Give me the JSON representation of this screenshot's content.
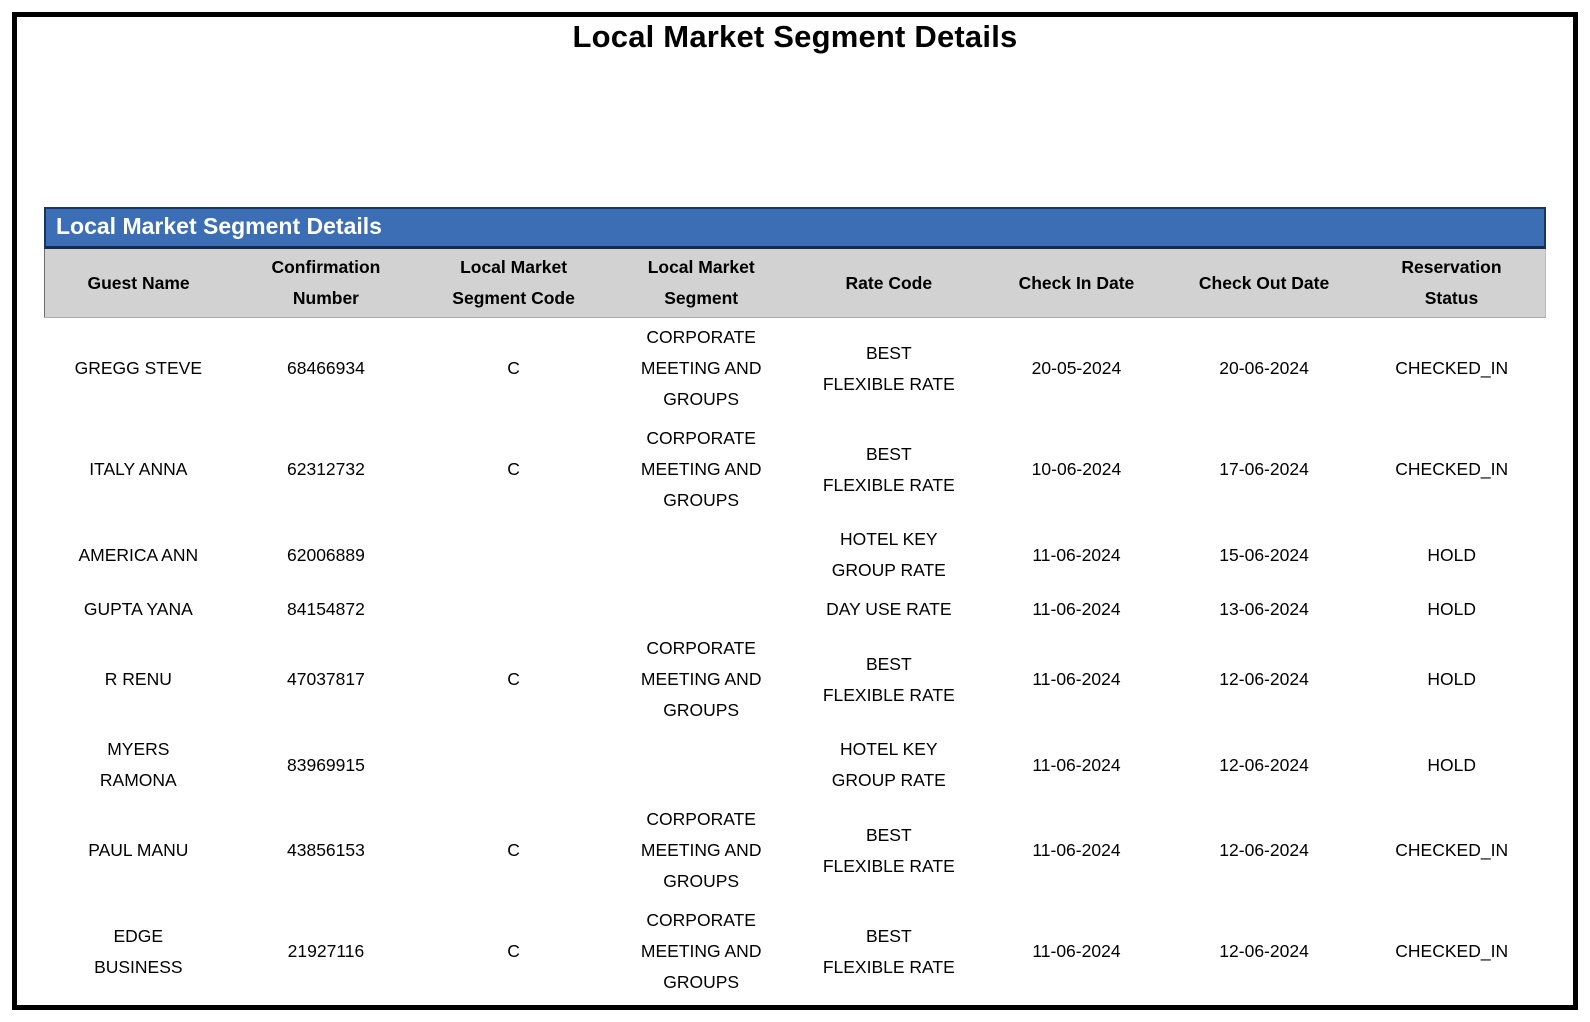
{
  "page_title": "Local Market Segment Details",
  "colors": {
    "band_background": "#3B6EB5",
    "band_text": "#FFFFFF",
    "column_header_background": "#D2D2D2",
    "page_border": "#000000"
  },
  "table": {
    "band_title": "Local Market Segment Details",
    "column_keys": [
      "guest_name",
      "confirmation_number",
      "local_market_segment_code",
      "local_market_segment",
      "rate_code",
      "check_in_date",
      "check_out_date",
      "reservation_status"
    ],
    "columns": [
      "Guest Name",
      "Confirmation\nNumber",
      "Local Market\nSegment Code",
      "Local Market\nSegment",
      "Rate Code",
      "Check In Date",
      "Check Out Date",
      "Reservation\nStatus"
    ],
    "rows": [
      [
        "GREGG STEVE",
        "68466934",
        "C",
        "CORPORATE\nMEETING AND\nGROUPS",
        "BEST\nFLEXIBLE RATE",
        "20-05-2024",
        "20-06-2024",
        "CHECKED_IN"
      ],
      [
        "ITALY ANNA",
        "62312732",
        "C",
        "CORPORATE\nMEETING AND\nGROUPS",
        "BEST\nFLEXIBLE RATE",
        "10-06-2024",
        "17-06-2024",
        "CHECKED_IN"
      ],
      [
        "AMERICA ANN",
        "62006889",
        "",
        "",
        "HOTEL KEY\nGROUP RATE",
        "11-06-2024",
        "15-06-2024",
        "HOLD"
      ],
      [
        "GUPTA YANA",
        "84154872",
        "",
        "",
        "DAY USE RATE",
        "11-06-2024",
        "13-06-2024",
        "HOLD"
      ],
      [
        "R RENU",
        "47037817",
        "C",
        "CORPORATE\nMEETING AND\nGROUPS",
        "BEST\nFLEXIBLE RATE",
        "11-06-2024",
        "12-06-2024",
        "HOLD"
      ],
      [
        "MYERS\nRAMONA",
        "83969915",
        "",
        "",
        "HOTEL KEY\nGROUP RATE",
        "11-06-2024",
        "12-06-2024",
        "HOLD"
      ],
      [
        "PAUL MANU",
        "43856153",
        "C",
        "CORPORATE\nMEETING AND\nGROUPS",
        "BEST\nFLEXIBLE RATE",
        "11-06-2024",
        "12-06-2024",
        "CHECKED_IN"
      ],
      [
        "EDGE\nBUSINESS",
        "21927116",
        "C",
        "CORPORATE\nMEETING AND\nGROUPS",
        "BEST\nFLEXIBLE RATE",
        "11-06-2024",
        "12-06-2024",
        "CHECKED_IN"
      ]
    ]
  }
}
